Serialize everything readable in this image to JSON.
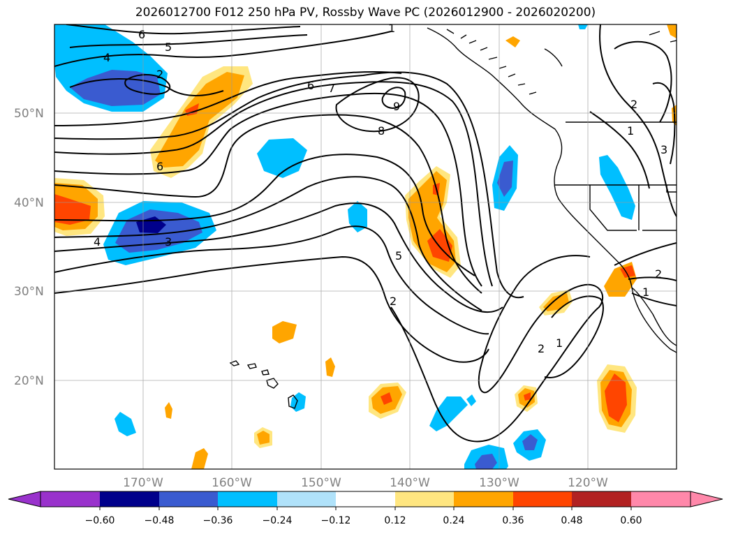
{
  "title": "2026012700 F012 250 hPa PV, Rossby Wave PC (2026012900 - 2026020200)",
  "map": {
    "lat_labels": [
      "50°N",
      "40°N",
      "30°N",
      "20°N"
    ],
    "lon_labels": [
      "170°W",
      "160°W",
      "150°W",
      "140°W",
      "130°W",
      "120°W"
    ],
    "contour_labels": [
      "6",
      "5",
      "4",
      "2",
      "1",
      "6",
      "7",
      "9",
      "8",
      "6",
      "4",
      "3",
      "5",
      "2",
      "2",
      "1",
      "2",
      "1",
      "3",
      "2",
      "1"
    ]
  },
  "colorbar": {
    "ticks": [
      "−0.60",
      "−0.48",
      "−0.36",
      "−0.24",
      "−0.12",
      "0.12",
      "0.24",
      "0.36",
      "0.48",
      "0.60"
    ],
    "colors": [
      "#9932cc",
      "#00008b",
      "#3a5bd0",
      "#00bfff",
      "#b0e2fa",
      "#ffffff",
      "#ffe680",
      "#ffa500",
      "#ff4500",
      "#b22222",
      "#ff88aa"
    ]
  }
}
